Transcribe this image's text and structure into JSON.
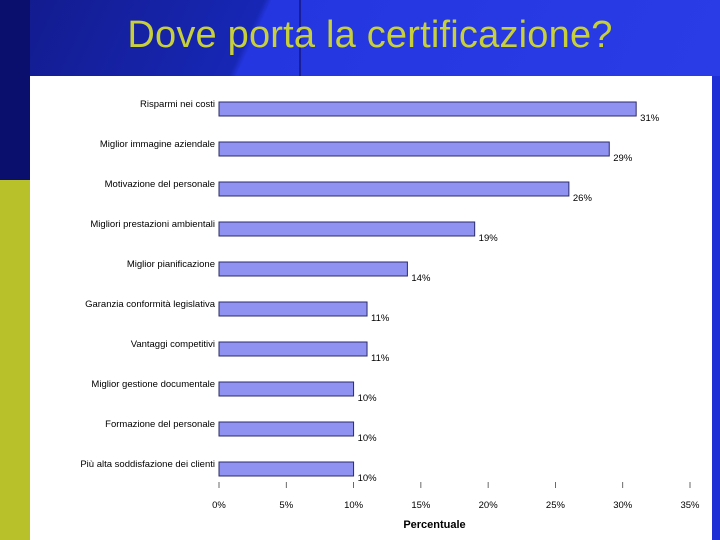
{
  "slide": {
    "title": "Dove porta la certificazione?"
  },
  "colors": {
    "bar_fill": "#8f92f0",
    "bar_stroke": "#2b2b6a",
    "title_color": "#c7cf3a",
    "background": "#1f2fd6"
  },
  "chart_data": {
    "type": "bar",
    "orientation": "horizontal",
    "categories": [
      "Risparmi nei costi",
      "Miglior immagine aziendale",
      "Motivazione del personale",
      "Migliori prestazioni ambientali",
      "Miglior pianificazione",
      "Garanzia conformità legislativa",
      "Vantaggi competitivi",
      "Miglior gestione documentale",
      "Formazione del personale",
      "Più alta soddisfazione dei clienti"
    ],
    "values": [
      31,
      29,
      26,
      19,
      14,
      11,
      11,
      10,
      10,
      10
    ],
    "value_labels": [
      "31%",
      "29%",
      "26%",
      "19%",
      "14%",
      "11%",
      "11%",
      "10%",
      "10%",
      "10%"
    ],
    "xlabel": "Percentuale",
    "xlim": [
      0,
      35
    ],
    "xticks": [
      0,
      5,
      10,
      15,
      20,
      25,
      30,
      35
    ],
    "xtick_labels": [
      "0%",
      "5%",
      "10%",
      "15%",
      "20%",
      "25%",
      "30%",
      "35%"
    ],
    "grid": false,
    "legend": "none"
  }
}
